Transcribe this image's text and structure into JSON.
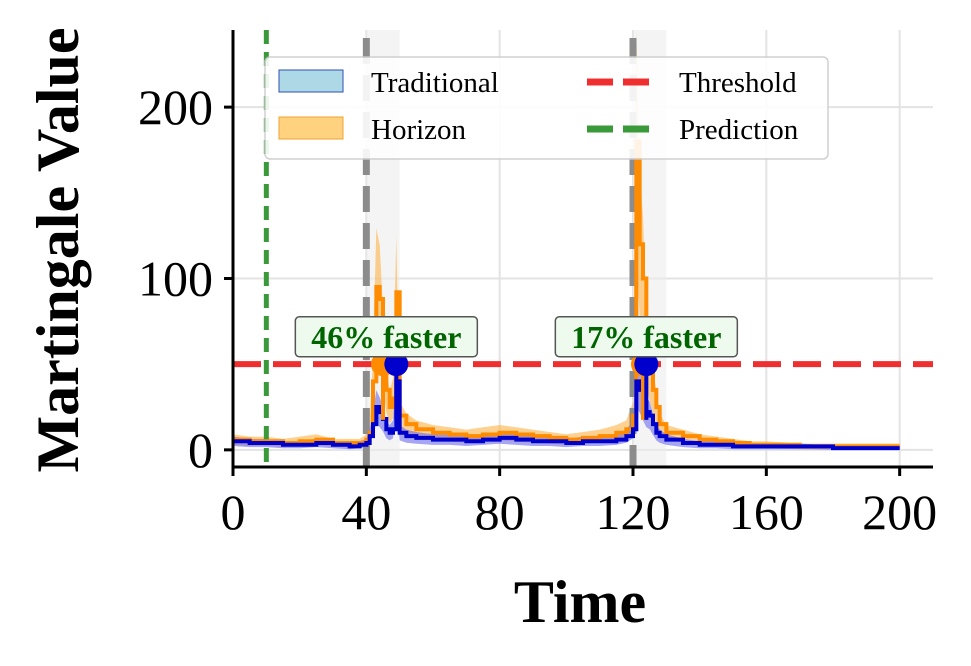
{
  "chart_data": {
    "type": "line",
    "xlabel": "Time",
    "ylabel": "Martingale Value",
    "xlim": [
      0,
      210
    ],
    "ylim": [
      -10,
      245
    ],
    "xticks": [
      0,
      40,
      80,
      120,
      160,
      200
    ],
    "yticks": [
      0,
      100,
      200
    ],
    "grid": true,
    "legend_placement": "top-center",
    "legend": [
      {
        "label": "Traditional",
        "kind": "patch",
        "color": "#add8e6"
      },
      {
        "label": "Horizon",
        "kind": "patch",
        "color": "#ffd27f"
      },
      {
        "label": "Threshold",
        "kind": "dashed-line",
        "color": "#ef2f2f"
      },
      {
        "label": "Prediction",
        "kind": "dashed-line",
        "color": "#3a9a3a"
      }
    ],
    "threshold": 50,
    "prediction_x": 10,
    "change_points": [
      40,
      120
    ],
    "shaded_regions": [
      [
        40,
        50
      ],
      [
        120,
        130
      ]
    ],
    "series": [
      {
        "name": "Horizon",
        "color": "#ff8c00",
        "band_color": "#ffb347",
        "x": [
          0,
          5,
          10,
          15,
          20,
          25,
          30,
          35,
          38,
          40,
          41,
          42,
          43,
          44,
          45,
          46,
          47,
          48,
          49,
          50,
          52,
          55,
          60,
          65,
          70,
          75,
          80,
          85,
          90,
          95,
          100,
          105,
          110,
          115,
          118,
          120,
          121,
          122,
          123,
          124,
          125,
          126,
          127,
          128,
          130,
          135,
          140,
          145,
          150,
          155,
          160,
          170,
          180,
          190,
          200
        ],
        "y": [
          6,
          5,
          5,
          4,
          5,
          6,
          4,
          4,
          4,
          6,
          10,
          40,
          95,
          88,
          60,
          35,
          25,
          30,
          92,
          20,
          15,
          12,
          10,
          9,
          8,
          9,
          10,
          9,
          8,
          7,
          6,
          7,
          8,
          10,
          12,
          20,
          180,
          120,
          100,
          60,
          45,
          35,
          25,
          15,
          10,
          8,
          6,
          5,
          4,
          3,
          3,
          2,
          2,
          2,
          2
        ]
      },
      {
        "name": "Traditional",
        "color": "#0000cd",
        "band_color": "#6a6aef",
        "x": [
          0,
          5,
          10,
          15,
          20,
          25,
          30,
          35,
          38,
          40,
          41,
          42,
          43,
          44,
          45,
          46,
          47,
          48,
          49,
          50,
          52,
          55,
          60,
          65,
          70,
          75,
          80,
          85,
          90,
          95,
          100,
          105,
          110,
          115,
          118,
          120,
          121,
          122,
          123,
          124,
          125,
          126,
          127,
          128,
          130,
          135,
          140,
          145,
          150,
          155,
          160,
          170,
          180,
          190,
          200
        ],
        "y": [
          5,
          4,
          4,
          3,
          3,
          4,
          3,
          2,
          3,
          4,
          8,
          15,
          25,
          22,
          18,
          12,
          10,
          12,
          40,
          10,
          8,
          7,
          6,
          6,
          5,
          6,
          7,
          6,
          5,
          5,
          4,
          5,
          5,
          6,
          8,
          12,
          40,
          35,
          28,
          22,
          20,
          15,
          10,
          8,
          6,
          4,
          3,
          3,
          2,
          2,
          2,
          2,
          1,
          1,
          1
        ]
      }
    ],
    "detection_markers": [
      {
        "series": "Horizon",
        "x": 45,
        "y": 50,
        "color": "#ff8c00"
      },
      {
        "series": "Traditional",
        "x": 49,
        "y": 50,
        "color": "#0000cd"
      },
      {
        "series": "Horizon",
        "x": 123,
        "y": 50,
        "color": "#ff8c00"
      },
      {
        "series": "Traditional",
        "x": 124,
        "y": 50,
        "color": "#0000cd"
      }
    ],
    "annotations": [
      {
        "text": "46% faster",
        "x": 46,
        "y": 66
      },
      {
        "text": "17% faster",
        "x": 124,
        "y": 66
      }
    ]
  }
}
